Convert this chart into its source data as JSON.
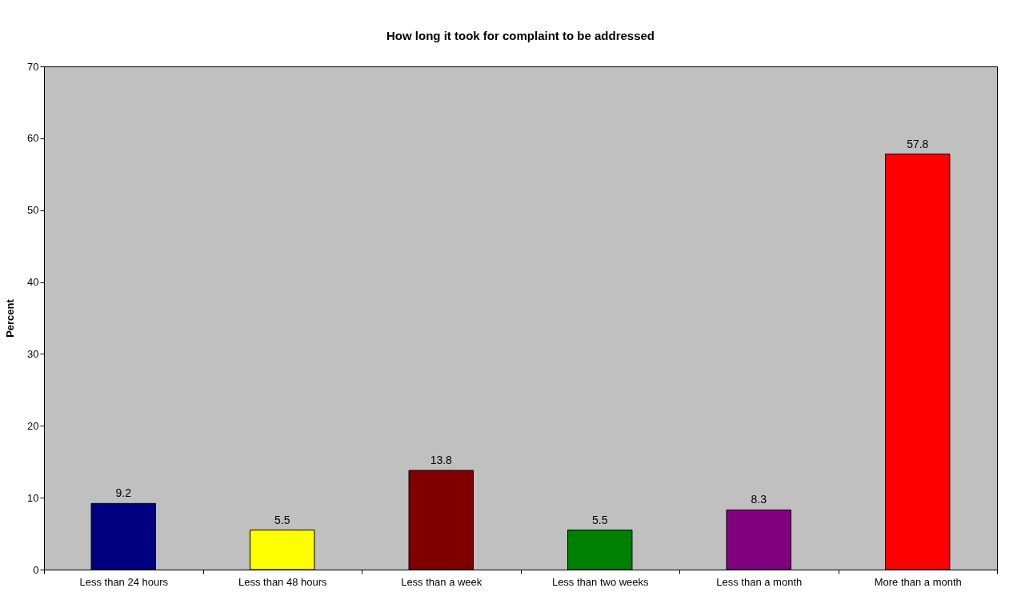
{
  "chart_data": {
    "type": "bar",
    "title": "How long it took for complaint to be addressed",
    "ylabel": "Percent",
    "categories": [
      "Less than 24 hours",
      "Less than 48 hours",
      "Less than a week",
      "Less than two weeks",
      "Less than a month",
      "More than a month"
    ],
    "values": [
      9.2,
      5.5,
      13.8,
      5.5,
      8.3,
      57.8
    ],
    "colors": [
      "#000080",
      "#ffff00",
      "#800000",
      "#008000",
      "#800080",
      "#ff0000"
    ],
    "ylim": [
      0,
      70
    ],
    "yticks": [
      0,
      10,
      20,
      30,
      40,
      50,
      60,
      70
    ],
    "data_labels": true,
    "grid": false
  }
}
